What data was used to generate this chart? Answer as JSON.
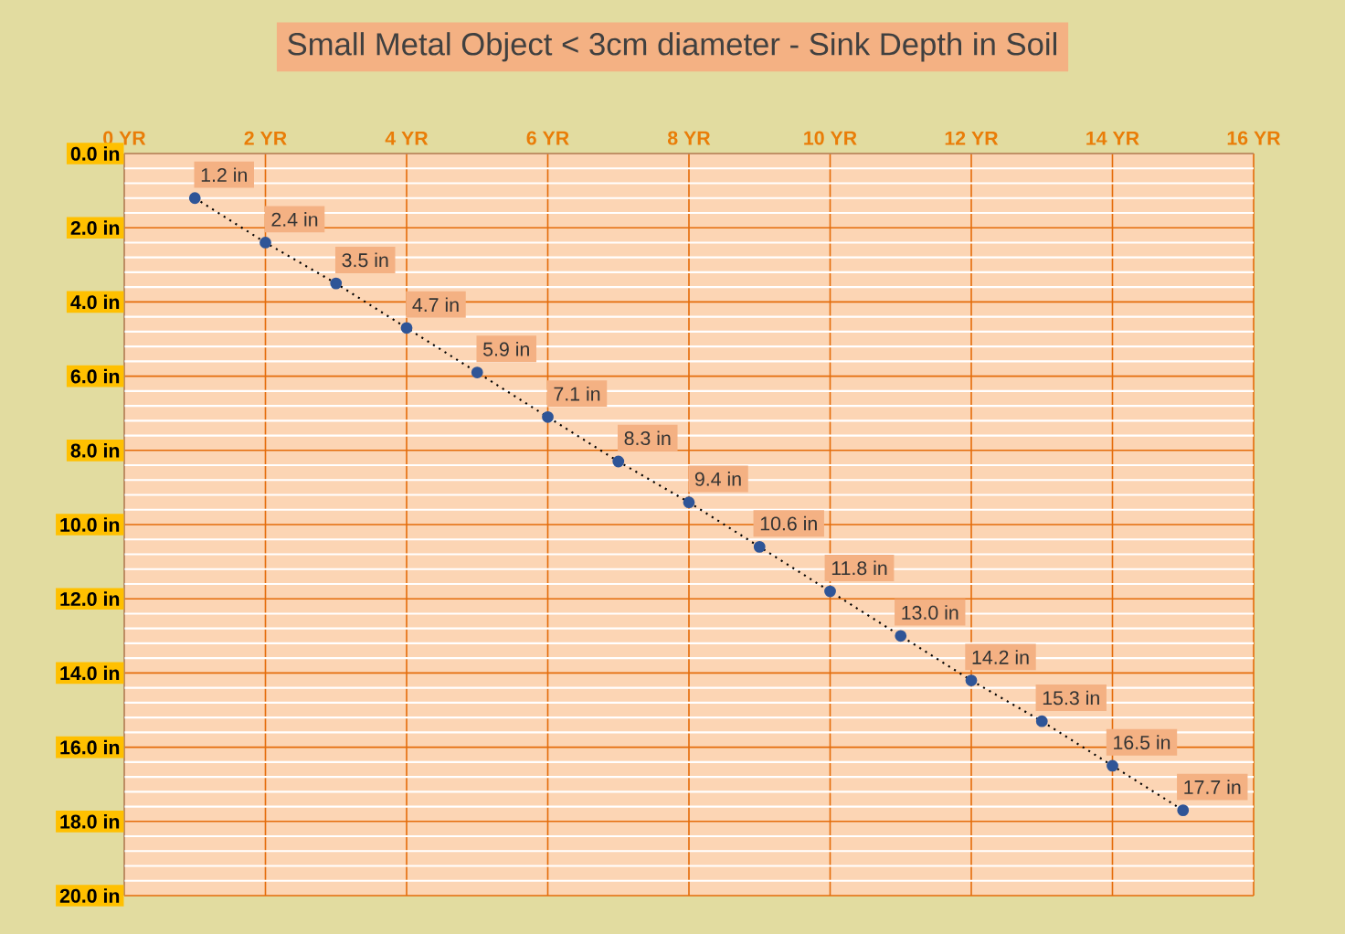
{
  "chart_data": {
    "type": "line",
    "title": "Small Metal Object < 3cm diameter - Sink Depth in Soil",
    "x": [
      1,
      2,
      3,
      4,
      5,
      6,
      7,
      8,
      9,
      10,
      11,
      12,
      13,
      14,
      15
    ],
    "values": [
      1.2,
      2.4,
      3.5,
      4.7,
      5.9,
      7.1,
      8.3,
      9.4,
      10.6,
      11.8,
      13.0,
      14.2,
      15.3,
      16.5,
      17.7
    ],
    "value_labels": [
      "1.2 in",
      "2.4 in",
      "3.5 in",
      "4.7 in",
      "5.9 in",
      "7.1 in",
      "8.3 in",
      "9.4 in",
      "10.6 in",
      "11.8 in",
      "13.0 in",
      "14.2 in",
      "15.3 in",
      "16.5 in",
      "17.7 in"
    ],
    "color": "#2f5597",
    "marker": "circle",
    "line_style": "dotted",
    "grid": true,
    "xlim": [
      0,
      16
    ],
    "xticks": [
      {
        "value": 0,
        "label": "0 YR"
      },
      {
        "value": 2,
        "label": "2 YR"
      },
      {
        "value": 4,
        "label": "4 YR"
      },
      {
        "value": 6,
        "label": "6 YR"
      },
      {
        "value": 8,
        "label": "8 YR"
      },
      {
        "value": 10,
        "label": "10 YR"
      },
      {
        "value": 12,
        "label": "12 YR"
      },
      {
        "value": 14,
        "label": "14 YR"
      },
      {
        "value": 16,
        "label": "16 YR"
      }
    ],
    "ylim": [
      20,
      0
    ],
    "yticks": [
      {
        "value": 0,
        "label": "0.0 in"
      },
      {
        "value": 2,
        "label": "2.0 in"
      },
      {
        "value": 4,
        "label": "4.0 in"
      },
      {
        "value": 6,
        "label": "6.0 in"
      },
      {
        "value": 8,
        "label": "8.0 in"
      },
      {
        "value": 10,
        "label": "10.0 in"
      },
      {
        "value": 12,
        "label": "12.0 in"
      },
      {
        "value": 14,
        "label": "14.0 in"
      },
      {
        "value": 16,
        "label": "16.0 in"
      },
      {
        "value": 18,
        "label": "18.0 in"
      },
      {
        "value": 20,
        "label": "20.0 in"
      }
    ]
  }
}
